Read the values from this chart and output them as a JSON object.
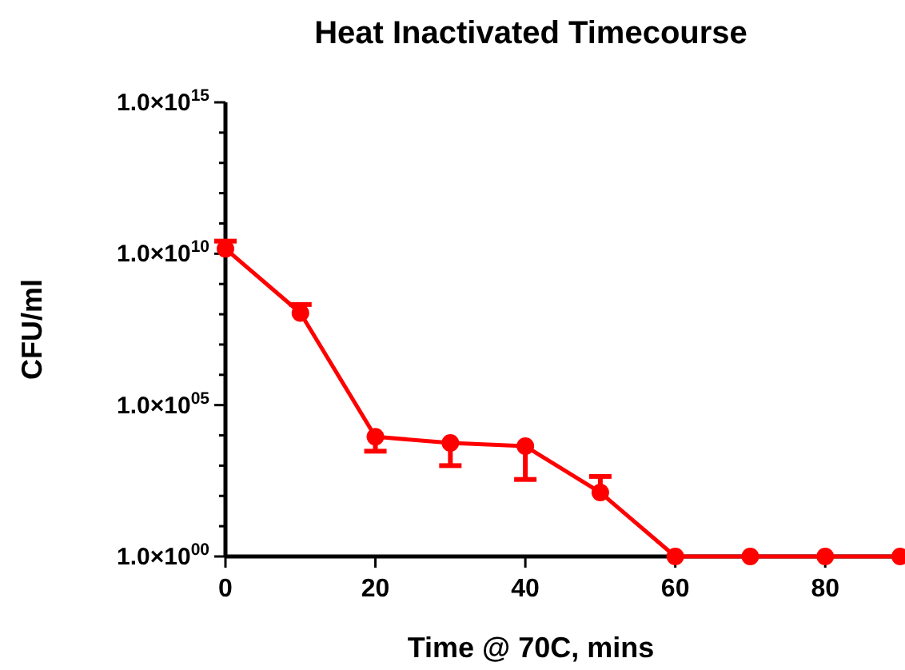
{
  "chart_data": {
    "type": "line",
    "title": "Heat Inactivated Timecourse",
    "xlabel": "Time @ 70C, mins",
    "ylabel": "CFU/ml",
    "log": "y",
    "marker": "circle",
    "line_style": "solid",
    "x": [
      0,
      10,
      20,
      30,
      40,
      50,
      60,
      70,
      80,
      90
    ],
    "series": [
      {
        "color": "#ff0000",
        "values": [
          14500000000.0,
          110000000.0,
          9000,
          5600,
          4400,
          130,
          1,
          1,
          1,
          1
        ],
        "errors": [
          [
            14500000000.0,
            26000000000.0
          ],
          [
            110000000.0,
            210000000.0
          ],
          [
            3000,
            9000
          ],
          [
            1000,
            5600
          ],
          [
            350,
            4400
          ],
          [
            130,
            440
          ],
          null,
          null,
          null,
          null
        ]
      }
    ],
    "xlim": [
      0,
      90
    ],
    "xticks": [
      0,
      20,
      40,
      60,
      80
    ],
    "ylim": [
      1,
      1000000000000000.0
    ],
    "yticks": [
      {
        "value": 1,
        "label": "1.0×10$^{00}$"
      },
      {
        "value": 10,
        "label": null
      },
      {
        "value": 100,
        "label": null
      },
      {
        "value": 1000,
        "label": null
      },
      {
        "value": 10000,
        "label": null
      },
      {
        "value": 100000,
        "label": "1.0×10$^{05}$"
      },
      {
        "value": 1000000.0,
        "label": null
      },
      {
        "value": 10000000.0,
        "label": null
      },
      {
        "value": 100000000.0,
        "label": null
      },
      {
        "value": 1000000000.0,
        "label": null
      },
      {
        "value": 10000000000.0,
        "label": "1.0×10$^{10}$"
      },
      {
        "value": 100000000000.0,
        "label": null
      },
      {
        "value": 1000000000000.0,
        "label": null
      },
      {
        "value": 10000000000000.0,
        "label": null
      },
      {
        "value": 100000000000000.0,
        "label": null
      },
      {
        "value": 1000000000000000.0,
        "label": "1.0×10$^{15}$"
      }
    ]
  }
}
